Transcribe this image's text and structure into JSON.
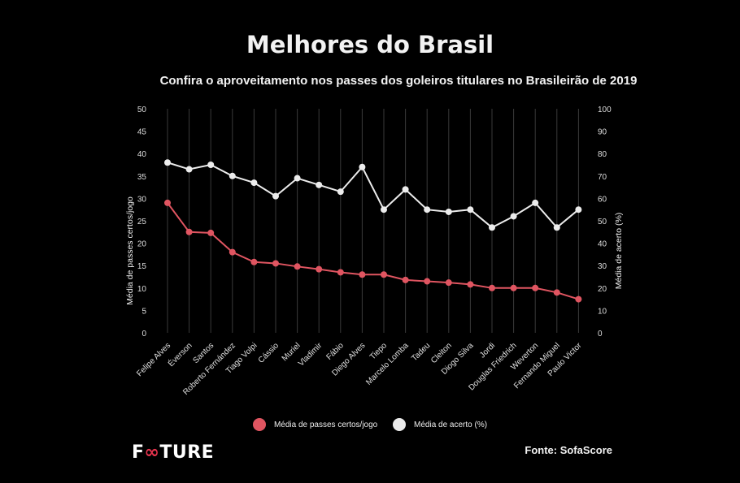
{
  "header": {
    "title": "Melhores do Brasil",
    "subtitle": "Confira o aproveitamento nos passes dos goleiros titulares no Brasileirão de 2019"
  },
  "chart_data": {
    "type": "line",
    "title": "Melhores do Brasil",
    "subtitle": "Confira o aproveitamento nos passes dos goleiros titulares no Brasileirão de 2019",
    "categories": [
      "Felipe Alves",
      "Éverson",
      "Santos",
      "Roberto Fernández",
      "Tiago Volpi",
      "Cássio",
      "Muriel",
      "Vladimir",
      "Fábio",
      "Diego Alves",
      "Tiepo",
      "Marcelo Lomba",
      "Tadeu",
      "Cleiton",
      "Diogo Silva",
      "Jordi",
      "Douglas Friedrich",
      "Weverton",
      "Fernando Miguel",
      "Paulo Victor"
    ],
    "y_left": {
      "label": "Média de passes certos/jogo",
      "ticks": [
        "0",
        "5",
        "10",
        "15",
        "20",
        "25",
        "30",
        "35",
        "40",
        "45",
        "50"
      ],
      "ylim": [
        0,
        50
      ]
    },
    "y_right": {
      "label": "Média de acerto (%)",
      "ticks": [
        "0",
        "10",
        "20",
        "30",
        "40",
        "50",
        "60",
        "70",
        "80",
        "90",
        "100"
      ],
      "ylim": [
        0,
        100
      ]
    },
    "series": [
      {
        "name": "Média de passes certos/jogo",
        "axis": "left",
        "color": "#e05561",
        "values": [
          29,
          22.5,
          22.3,
          18,
          15.8,
          15.5,
          14.8,
          14.2,
          13.5,
          13,
          13,
          11.8,
          11.5,
          11.2,
          10.8,
          10,
          10,
          10,
          9,
          7.5
        ]
      },
      {
        "name": "Média de acerto (%)",
        "axis": "right",
        "color": "#ececec",
        "values": [
          76,
          73,
          75,
          70,
          67,
          61,
          69,
          66,
          63,
          74,
          55,
          64,
          55,
          54,
          55,
          47,
          52,
          58,
          47,
          55
        ]
      }
    ],
    "grid": {
      "vertical": true,
      "horizontal": false
    },
    "legend_position": "bottom"
  },
  "footer": {
    "logo_text": "FOOTURE",
    "source": "Fonte: SofaScore"
  }
}
